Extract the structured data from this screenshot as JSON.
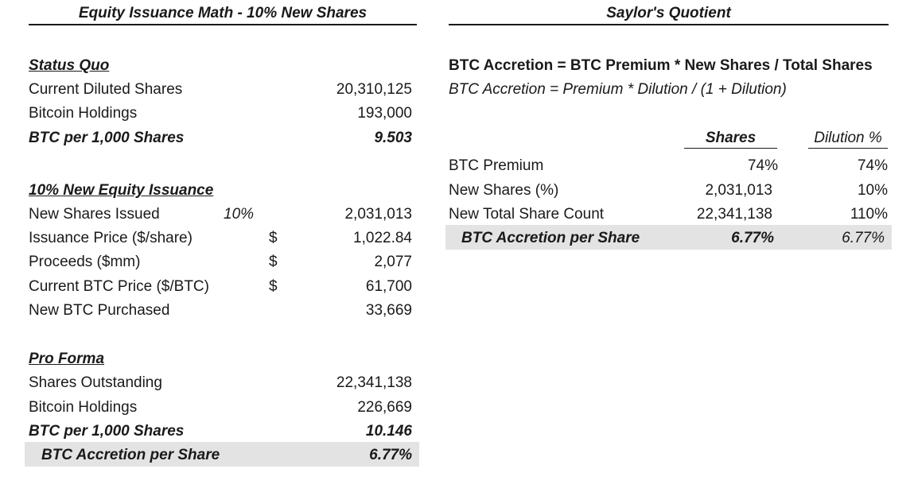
{
  "left_panel": {
    "title": "Equity Issuance Math - 10% New Shares",
    "status_quo": {
      "heading": "Status Quo",
      "rows": [
        {
          "label": "Current Diluted Shares",
          "value": "20,310,125"
        },
        {
          "label": "Bitcoin Holdings",
          "value": "193,000"
        },
        {
          "label": "BTC per 1,000 Shares",
          "value": "9.503"
        }
      ]
    },
    "issuance": {
      "heading": "10% New Equity Issuance",
      "rows": [
        {
          "label": "New Shares Issued",
          "extra": "10%",
          "value": "2,031,013"
        },
        {
          "label": "Issuance Price ($/share)",
          "extra": "$",
          "value": "1,022.84"
        },
        {
          "label": "Proceeds ($mm)",
          "extra": "$",
          "value": "2,077"
        },
        {
          "label": "Current BTC Price ($/BTC)",
          "extra": "$",
          "value": "61,700"
        },
        {
          "label": "New BTC Purchased",
          "value": "33,669"
        }
      ]
    },
    "pro_forma": {
      "heading": "Pro Forma",
      "rows": [
        {
          "label": "Shares Outstanding",
          "value": "22,341,138"
        },
        {
          "label": "Bitcoin Holdings",
          "value": "226,669"
        },
        {
          "label": "BTC per 1,000 Shares",
          "value": "10.146"
        },
        {
          "label": "BTC Accretion per Share",
          "value": "6.77%"
        }
      ]
    }
  },
  "right_panel": {
    "title": "Saylor's Quotient",
    "formula_1": "BTC Accretion = BTC Premium * New Shares / Total Shares",
    "formula_2": "BTC Accretion = Premium  * Dilution / (1 + Dilution)",
    "columns": [
      "Shares",
      "Dilution %"
    ],
    "rows": [
      {
        "label": "BTC Premium",
        "shares": "74%",
        "dilution": "74%"
      },
      {
        "label": "New Shares (%)",
        "shares": "2,031,013",
        "dilution": "10%"
      },
      {
        "label": "New Total Share Count",
        "shares": "22,341,138",
        "dilution": "110%"
      },
      {
        "label": "BTC Accretion per Share",
        "shares": "6.77%",
        "dilution": "6.77%"
      }
    ]
  }
}
